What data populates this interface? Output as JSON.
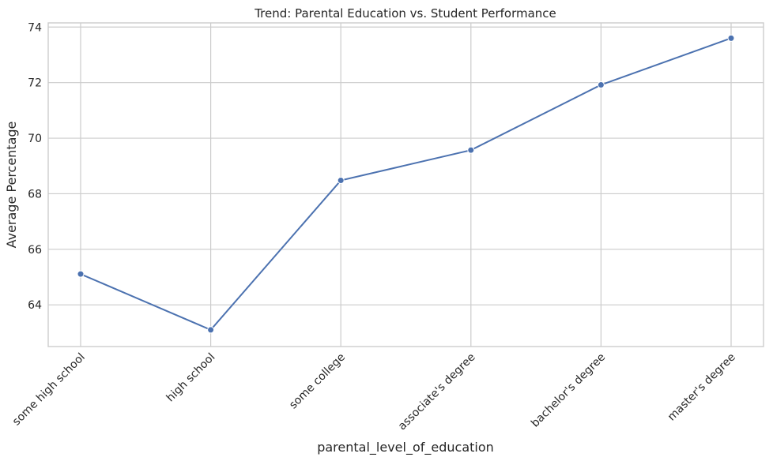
{
  "chart_data": {
    "type": "line",
    "title": "Trend: Parental Education vs. Student Performance",
    "xlabel": "parental_level_of_education",
    "ylabel": "Average Percentage",
    "categories": [
      "some high school",
      "high school",
      "some college",
      "associate's degree",
      "bachelor's degree",
      "master's degree"
    ],
    "series": [
      {
        "values": [
          65.11,
          63.1,
          68.48,
          69.57,
          71.92,
          73.6
        ]
      }
    ],
    "ylim": [
      62.5,
      74.15
    ],
    "yticks": [
      64,
      66,
      68,
      70,
      72,
      74
    ],
    "grid": true,
    "colors": {
      "line": "#4c72b0",
      "grid": "#cccccc",
      "text": "#262626"
    }
  }
}
